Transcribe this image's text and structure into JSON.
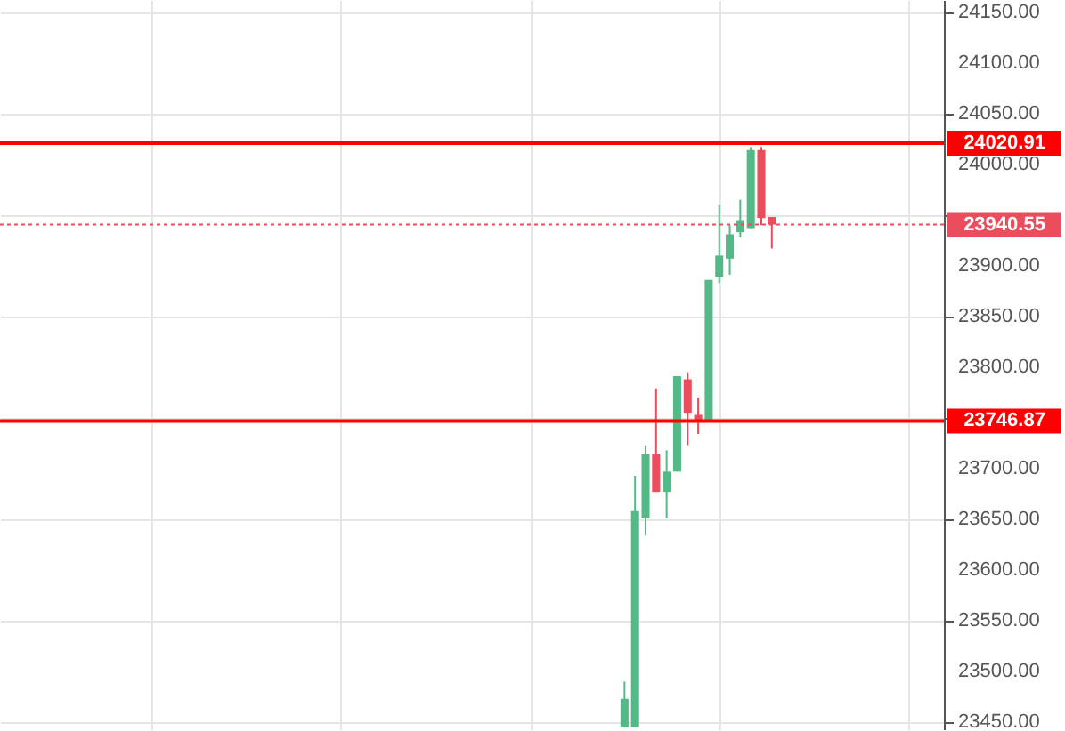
{
  "chart_data": {
    "type": "candlestick",
    "categories": [
      null,
      null,
      null,
      null,
      null,
      null,
      null,
      null,
      null,
      null,
      null,
      null,
      null,
      null,
      null,
      null,
      null,
      null,
      null,
      null,
      null,
      null,
      null,
      null,
      null,
      null,
      null,
      null,
      null,
      null,
      null,
      null,
      null,
      null,
      null,
      null,
      null,
      null,
      null,
      null,
      null,
      null,
      null,
      null,
      null,
      null,
      null,
      null,
      null,
      null,
      null,
      null,
      null,
      null,
      null,
      null,
      null,
      null,
      null,
      null,
      null,
      null,
      null,
      null,
      null,
      null,
      null,
      null,
      null,
      null,
      null,
      null,
      null,
      null,
      null,
      null,
      null,
      null,
      null,
      null,
      null,
      null,
      null,
      null,
      null,
      null,
      null,
      null
    ],
    "ohlc": [
      null,
      null,
      null,
      null,
      null,
      null,
      null,
      null,
      null,
      null,
      null,
      null,
      null,
      null,
      null,
      null,
      null,
      null,
      null,
      null,
      null,
      null,
      null,
      null,
      null,
      null,
      null,
      null,
      null,
      null,
      null,
      null,
      null,
      null,
      null,
      null,
      null,
      null,
      null,
      null,
      null,
      null,
      null,
      null,
      null,
      null,
      null,
      null,
      null,
      null,
      null,
      null,
      null,
      null,
      null,
      null,
      null,
      null,
      [
        23445,
        23490,
        23445,
        23473
      ],
      [
        23445,
        23693,
        23445,
        23658
      ],
      [
        23651,
        23723,
        23634,
        23714
      ],
      [
        23714,
        23779,
        23677,
        23677
      ],
      [
        23677,
        23718,
        23651,
        23697
      ],
      [
        23697,
        23791,
        23697,
        23791
      ],
      [
        23788,
        23795,
        23723,
        23755
      ],
      [
        23753,
        23770,
        23734,
        23748
      ],
      [
        23747,
        23886,
        23747,
        23886
      ],
      [
        23889,
        23960,
        23883,
        23910
      ],
      [
        23907,
        23940,
        23891,
        23931
      ],
      [
        23933,
        23965,
        23928,
        23945
      ],
      [
        23937,
        24017,
        23937,
        24014
      ],
      [
        24014,
        24017,
        23940,
        23947
      ],
      [
        23948,
        23948,
        23917,
        23940.55
      ],
      null,
      null,
      null,
      null,
      null,
      null,
      null,
      null,
      null,
      null,
      null,
      null,
      null,
      null,
      null
    ],
    "colors": [
      null,
      null,
      null,
      null,
      null,
      null,
      null,
      null,
      null,
      null,
      null,
      null,
      null,
      null,
      null,
      null,
      null,
      null,
      null,
      null,
      null,
      null,
      null,
      null,
      null,
      null,
      null,
      null,
      null,
      null,
      null,
      null,
      null,
      null,
      null,
      null,
      null,
      null,
      null,
      null,
      null,
      null,
      null,
      null,
      null,
      null,
      null,
      null,
      null,
      null,
      null,
      null,
      null,
      null,
      null,
      null,
      null,
      null,
      "#53b987",
      "#53b987",
      "#53b987",
      "#eb4d5c",
      "#53b987",
      "#53b987",
      "#eb4d5c",
      "#eb4d5c",
      "#53b987",
      "#53b987",
      "#53b987",
      "#53b987",
      "#53b987",
      "#eb4d5c",
      "#eb4d5c",
      null,
      null,
      null,
      null,
      null,
      null,
      null,
      null,
      null,
      null,
      null,
      null,
      null,
      null,
      null
    ],
    "ylim": [
      23443,
      24162
    ],
    "yticks": [
      {
        "value": 23450,
        "label": "23450.00"
      },
      {
        "value": 23500,
        "label": "23500.00"
      },
      {
        "value": 23550,
        "label": "23550.00"
      },
      {
        "value": 23600,
        "label": "23600.00"
      },
      {
        "value": 23650,
        "label": "23650.00"
      },
      {
        "value": 23700,
        "label": "23700.00"
      },
      {
        "value": 23750,
        "label": null
      },
      {
        "value": 23800,
        "label": "23800.00"
      },
      {
        "value": 23850,
        "label": "23850.00"
      },
      {
        "value": 23900,
        "label": "23900.00"
      },
      {
        "value": 23950,
        "label": null
      },
      {
        "value": 24000,
        "label": "24000.00"
      },
      {
        "value": 24050,
        "label": "24050.00"
      },
      {
        "value": 24100,
        "label": "24100.00"
      },
      {
        "value": 24150,
        "label": "24150.00"
      }
    ],
    "ref_lines": [
      {
        "axis": "y",
        "value": 24020.91,
        "label": "24020.91",
        "color": "#ff0000"
      },
      {
        "axis": "y",
        "value": 23746.87,
        "label": "23746.87",
        "color": "#ff0000"
      },
      {
        "axis": "y",
        "value": 23940.55,
        "label": "23940.55",
        "color": "#eb4d5c",
        "line_style": "dotted"
      }
    ],
    "grid": true,
    "tick_labels": "y"
  }
}
